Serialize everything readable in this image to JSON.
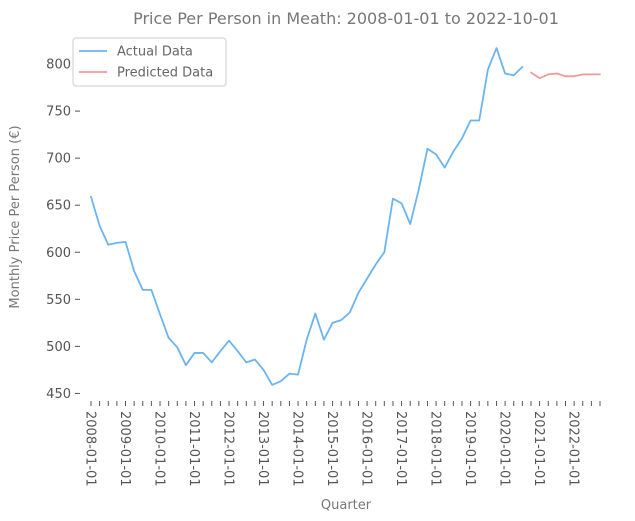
{
  "chart_data": {
    "type": "line",
    "title": "Price Per Person in Meath: 2008-01-01 to 2022-10-01",
    "xlabel": "Quarter",
    "ylabel": "Monthly Price Per Person (€)",
    "ylim": [
      443,
      833
    ],
    "yticks": [
      450,
      500,
      550,
      600,
      650,
      700,
      750,
      800
    ],
    "x_start": "2008-01-01",
    "x_step_months": 3,
    "x_count": 60,
    "xtick_labels": [
      "2008-01-01",
      "2009-01-01",
      "2010-01-01",
      "2011-01-01",
      "2012-01-01",
      "2013-01-01",
      "2014-01-01",
      "2015-01-01",
      "2016-01-01",
      "2017-01-01",
      "2018-01-01",
      "2019-01-01",
      "2020-01-01",
      "2021-01-01",
      "2022-01-01"
    ],
    "grid": false,
    "legend_position": "top-left",
    "series": [
      {
        "name": "Actual Data",
        "color": "#6cb4f0",
        "start": "2008-01-01",
        "values": [
          659,
          628,
          608,
          610,
          611,
          580,
          560,
          560,
          534,
          509,
          499,
          480,
          493,
          493,
          483,
          495,
          506,
          495,
          483,
          486,
          475,
          459,
          463,
          471,
          470,
          507,
          535,
          507,
          525,
          528,
          536,
          557,
          572,
          587,
          600,
          657,
          652,
          630,
          667,
          710,
          704,
          690,
          707,
          721,
          740,
          740,
          794,
          817,
          790,
          788,
          797
        ]
      },
      {
        "name": "Predicted Data",
        "color": "#f29a9a",
        "start": "2020-10-01",
        "values": [
          791,
          785,
          789,
          790,
          787,
          787,
          789,
          789,
          789
        ]
      }
    ]
  }
}
